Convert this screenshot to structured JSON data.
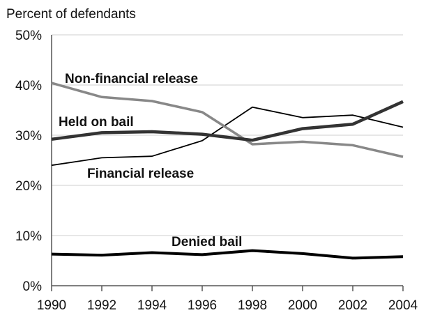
{
  "chart_data": {
    "type": "line",
    "ylabel": "Percent of defendants",
    "xlabel": "",
    "x": [
      1990,
      1992,
      1994,
      1996,
      1998,
      2000,
      2002,
      2004
    ],
    "xlim": [
      1990,
      2004
    ],
    "ylim": [
      0,
      50
    ],
    "x_ticks": [
      "1990",
      "1992",
      "1994",
      "1996",
      "1998",
      "2000",
      "2002",
      "2004"
    ],
    "y_ticks": [
      "0%",
      "10%",
      "20%",
      "30%",
      "40%",
      "50%"
    ],
    "grid": true,
    "legend": "none",
    "series": [
      {
        "name": "Non-financial release",
        "color": "#888888",
        "values": [
          40.4,
          37.6,
          36.8,
          34.6,
          28.2,
          28.7,
          28.0,
          25.7
        ]
      },
      {
        "name": "Held on bail",
        "color": "#333333",
        "values": [
          29.2,
          30.5,
          30.7,
          30.2,
          29.0,
          31.3,
          32.2,
          36.7
        ]
      },
      {
        "name": "Financial release",
        "color": "#000000",
        "values": [
          24.0,
          25.5,
          25.8,
          28.9,
          35.6,
          33.5,
          34.0,
          31.6
        ]
      },
      {
        "name": "Denied bail",
        "color": "#000000",
        "values": [
          6.3,
          6.1,
          6.6,
          6.2,
          7.0,
          6.4,
          5.5,
          5.8
        ]
      }
    ]
  }
}
